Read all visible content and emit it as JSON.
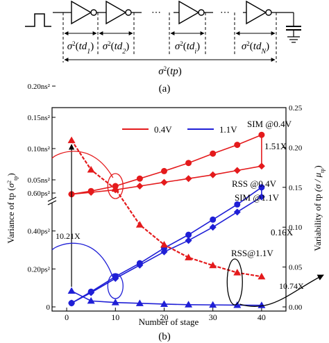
{
  "panel_a": {
    "label": "(a)",
    "delay_terms": [
      {
        "sigma": "σ",
        "power": "2",
        "arg": "td",
        "sub": "1"
      },
      {
        "sigma": "σ",
        "power": "2",
        "arg": "td",
        "sub": "2"
      },
      {
        "sigma": "σ",
        "power": "2",
        "arg": "td",
        "sub": "i"
      },
      {
        "sigma": "σ",
        "power": "2",
        "arg": "td",
        "sub": "N"
      }
    ],
    "total_term": {
      "sigma": "σ",
      "power": "2",
      "arg": "tp"
    },
    "ellipses": [
      "⋯",
      "⋯"
    ]
  },
  "panel_b": {
    "label": "(b)",
    "ylabel_left": "Variance of tp",
    "ylabel_left_symbol": "σ",
    "ylabel_left_sup": "2",
    "ylabel_left_sub": "tp",
    "ylabel_right": "Variability of tp",
    "ylabel_right_symbol": "(σ / μ",
    "ylabel_right_sub": "tp",
    "ylabel_right_close": ")",
    "xlabel": "Number of stage",
    "legend": [
      {
        "label": "0.4V",
        "color": "#e41a1c"
      },
      {
        "label": "1.1V",
        "color": "#1f1fd6"
      }
    ],
    "annotations": {
      "sim04": "SIM @0.4V",
      "ratio_151": "1.51X",
      "rss04": "RSS @0.4V",
      "sim11": "SIM @1.1V",
      "ratio_016": "0.16X",
      "rss11": "RSS@1.1V",
      "ratio_1021": "10.21X",
      "ratio_1074": "10.74X"
    }
  },
  "chart_data": {
    "type": "line",
    "xlabel": "Number of stage",
    "ylabel": "Variance of tp",
    "y2label": "Variability of tp",
    "xlim": [
      -3,
      45
    ],
    "xticks": [
      0,
      10,
      20,
      30,
      40
    ],
    "x": [
      1,
      5,
      10,
      15,
      20,
      25,
      30,
      35,
      40
    ],
    "left_axis": {
      "broken": true,
      "upper_ticks": [
        "0.05ns²",
        "0.10ns²",
        "0.15ns²",
        "0.20ns²"
      ],
      "lower_ticks": [
        "0",
        "0.20ps²",
        "0.40ps²",
        "0.60ps²"
      ]
    },
    "right_axis": {
      "ylim": [
        0,
        0.25
      ],
      "ticks": [
        "0.00",
        "0.05",
        "0.10",
        "0.15",
        "0.20",
        "0.25"
      ]
    },
    "series": [
      {
        "name": "SIM @0.4V",
        "axis": "left-upper",
        "unit": "ns²",
        "color": "#e41a1c",
        "marker": "circle",
        "values": [
          0.027,
          0.032,
          0.04,
          0.052,
          0.064,
          0.077,
          0.092,
          0.106,
          0.122
        ]
      },
      {
        "name": "RSS @0.4V",
        "axis": "left-upper",
        "unit": "ns²",
        "color": "#e41a1c",
        "marker": "diamond",
        "values": [
          0.027,
          0.03,
          0.034,
          0.04,
          0.046,
          0.052,
          0.058,
          0.065,
          0.072
        ]
      },
      {
        "name": "SIM @1.1V",
        "axis": "left-lower",
        "unit": "ps²",
        "color": "#1f1fd6",
        "marker": "circle",
        "values": [
          0.02,
          0.08,
          0.16,
          0.23,
          0.31,
          0.38,
          0.46,
          0.54,
          0.63
        ]
      },
      {
        "name": "RSS@1.1V",
        "axis": "left-lower",
        "unit": "ps²",
        "color": "#1f1fd6",
        "marker": "diamond",
        "values": [
          0.02,
          0.075,
          0.15,
          0.22,
          0.29,
          0.35,
          0.42,
          0.5,
          0.58
        ]
      },
      {
        "name": "Variability 0.4V",
        "axis": "right",
        "color": "#e41a1c",
        "marker": "triangle",
        "values": [
          0.209,
          0.172,
          0.148,
          0.103,
          0.078,
          0.062,
          0.052,
          0.043,
          0.038
        ]
      },
      {
        "name": "Variability 1.1V",
        "axis": "right",
        "color": "#1f1fd6",
        "marker": "triangle",
        "values": [
          0.02,
          0.0075,
          0.0055,
          0.0045,
          0.0035,
          0.0028,
          0.0025,
          0.0022,
          0.002
        ]
      }
    ]
  }
}
